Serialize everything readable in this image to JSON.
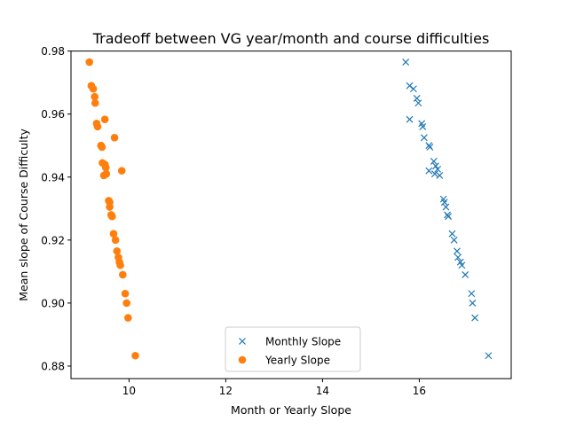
{
  "chart_data": {
    "type": "scatter",
    "title": "Tradeoff between VG year/month and course difficulties",
    "xlabel": "Month or Yearly Slope",
    "ylabel": "Mean slope of Course Difficulty",
    "xlim": [
      8.8,
      17.9
    ],
    "ylim": [
      0.876,
      0.98
    ],
    "xticks": [
      10,
      12,
      14,
      16
    ],
    "yticks": [
      0.88,
      0.9,
      0.92,
      0.94,
      0.96,
      0.98
    ],
    "xtick_labels": [
      "10",
      "12",
      "14",
      "16"
    ],
    "ytick_labels": [
      "0.88",
      "0.90",
      "0.92",
      "0.94",
      "0.96",
      "0.98"
    ],
    "grid": false,
    "legend_position": "lower center",
    "series": [
      {
        "name": "Monthly Slope",
        "marker": "x",
        "color": "#1f77b4",
        "points": [
          [
            15.72,
            0.9765
          ],
          [
            15.8,
            0.969
          ],
          [
            15.88,
            0.968
          ],
          [
            15.95,
            0.965
          ],
          [
            15.98,
            0.9635
          ],
          [
            15.8,
            0.9583
          ],
          [
            16.05,
            0.957
          ],
          [
            16.07,
            0.956
          ],
          [
            16.1,
            0.9525
          ],
          [
            16.2,
            0.95
          ],
          [
            16.22,
            0.9495
          ],
          [
            16.3,
            0.945
          ],
          [
            16.34,
            0.9435
          ],
          [
            16.38,
            0.9425
          ],
          [
            16.2,
            0.942
          ],
          [
            16.32,
            0.941
          ],
          [
            16.42,
            0.9405
          ],
          [
            16.5,
            0.933
          ],
          [
            16.52,
            0.932
          ],
          [
            16.55,
            0.9305
          ],
          [
            16.58,
            0.928
          ],
          [
            16.6,
            0.9275
          ],
          [
            16.68,
            0.922
          ],
          [
            16.72,
            0.92
          ],
          [
            16.78,
            0.9165
          ],
          [
            16.8,
            0.9145
          ],
          [
            16.85,
            0.913
          ],
          [
            16.88,
            0.912
          ],
          [
            16.95,
            0.909
          ],
          [
            17.08,
            0.903
          ],
          [
            17.1,
            0.9
          ],
          [
            17.15,
            0.8953
          ],
          [
            17.43,
            0.8833
          ]
        ]
      },
      {
        "name": "Yearly Slope",
        "marker": "o",
        "color": "#ff7f0e",
        "points": [
          [
            9.18,
            0.9765
          ],
          [
            9.22,
            0.969
          ],
          [
            9.26,
            0.968
          ],
          [
            9.29,
            0.9655
          ],
          [
            9.3,
            0.9635
          ],
          [
            9.5,
            0.9583
          ],
          [
            9.33,
            0.957
          ],
          [
            9.35,
            0.956
          ],
          [
            9.7,
            0.9525
          ],
          [
            9.42,
            0.95
          ],
          [
            9.44,
            0.9495
          ],
          [
            9.45,
            0.9445
          ],
          [
            9.5,
            0.944
          ],
          [
            9.52,
            0.943
          ],
          [
            9.85,
            0.942
          ],
          [
            9.53,
            0.941
          ],
          [
            9.48,
            0.9405
          ],
          [
            9.58,
            0.9325
          ],
          [
            9.6,
            0.932
          ],
          [
            9.6,
            0.9305
          ],
          [
            9.63,
            0.928
          ],
          [
            9.65,
            0.9275
          ],
          [
            9.68,
            0.922
          ],
          [
            9.72,
            0.92
          ],
          [
            9.75,
            0.9165
          ],
          [
            9.78,
            0.9145
          ],
          [
            9.8,
            0.913
          ],
          [
            9.82,
            0.912
          ],
          [
            9.87,
            0.909
          ],
          [
            9.92,
            0.903
          ],
          [
            9.95,
            0.9
          ],
          [
            9.98,
            0.8953
          ],
          [
            10.13,
            0.8833
          ]
        ]
      }
    ]
  }
}
